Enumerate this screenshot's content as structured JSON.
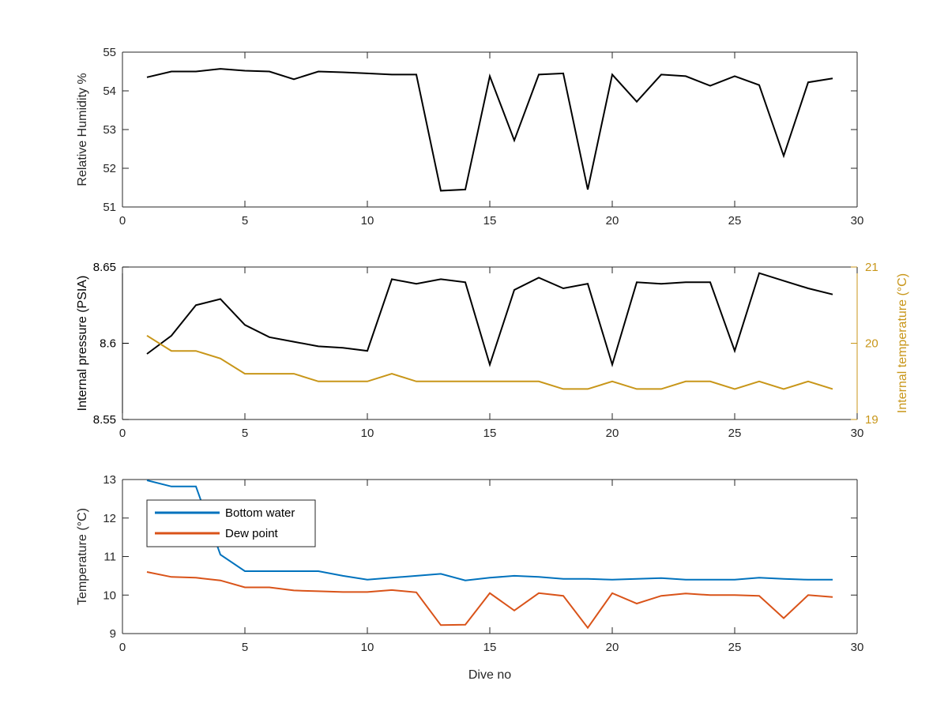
{
  "chart_data": [
    {
      "type": "line",
      "panel": "humidity",
      "title": "",
      "xlabel": "",
      "ylabel": "Relative Humidity %",
      "xlim": [
        0,
        30
      ],
      "ylim": [
        51,
        55
      ],
      "xticks": [
        0,
        5,
        10,
        15,
        20,
        25,
        30
      ],
      "yticks": [
        51,
        52,
        53,
        54,
        55
      ],
      "grid": false,
      "series": [
        {
          "color": "#000000",
          "x": [
            1,
            2,
            3,
            4,
            5,
            6,
            7,
            8,
            9,
            10,
            11,
            12,
            13,
            14,
            15,
            16,
            17,
            18,
            19,
            20,
            21,
            22,
            23,
            24,
            25,
            26,
            27,
            28,
            29
          ],
          "y": [
            54.35,
            54.5,
            54.5,
            54.57,
            54.52,
            54.5,
            54.3,
            54.5,
            54.48,
            54.45,
            54.42,
            54.42,
            51.42,
            51.45,
            54.38,
            52.72,
            54.42,
            54.45,
            51.45,
            54.42,
            53.72,
            54.42,
            54.38,
            54.13,
            54.38,
            54.15,
            52.32,
            54.22,
            54.32
          ]
        }
      ]
    },
    {
      "type": "line",
      "panel": "pressure",
      "title": "",
      "xlabel": "",
      "ylabel": "Internal pressure (PSIA)",
      "y2label": "Internal temperature (°C)",
      "xlim": [
        0,
        30
      ],
      "ylim": [
        8.55,
        8.65
      ],
      "y2lim": [
        19,
        21
      ],
      "xticks": [
        0,
        5,
        10,
        15,
        20,
        25,
        30
      ],
      "yticks": [
        "8.55",
        "8.6",
        "8.65"
      ],
      "y2ticks": [
        19,
        20,
        21
      ],
      "axis_colors": {
        "left": "#000000",
        "right": "#c89619"
      },
      "grid": false,
      "series": [
        {
          "axis": "left",
          "color": "#000000",
          "x": [
            1,
            2,
            3,
            4,
            5,
            6,
            7,
            8,
            9,
            10,
            11,
            12,
            13,
            14,
            15,
            16,
            17,
            18,
            19,
            20,
            21,
            22,
            23,
            24,
            25,
            26,
            27,
            28,
            29
          ],
          "y": [
            8.593,
            8.605,
            8.625,
            8.629,
            8.612,
            8.604,
            8.601,
            8.598,
            8.597,
            8.595,
            8.642,
            8.639,
            8.642,
            8.64,
            8.586,
            8.635,
            8.643,
            8.636,
            8.639,
            8.586,
            8.64,
            8.639,
            8.64,
            8.64,
            8.595,
            8.646,
            8.641,
            8.636,
            8.632
          ]
        },
        {
          "axis": "right",
          "color": "#c89619",
          "x": [
            1,
            2,
            3,
            4,
            5,
            6,
            7,
            8,
            9,
            10,
            11,
            12,
            13,
            14,
            15,
            16,
            17,
            18,
            19,
            20,
            21,
            22,
            23,
            24,
            25,
            26,
            27,
            28,
            29
          ],
          "y": [
            20.1,
            19.9,
            19.9,
            19.8,
            19.6,
            19.6,
            19.6,
            19.5,
            19.5,
            19.5,
            19.6,
            19.5,
            19.5,
            19.5,
            19.5,
            19.5,
            19.5,
            19.4,
            19.4,
            19.5,
            19.4,
            19.4,
            19.5,
            19.5,
            19.4,
            19.5,
            19.4,
            19.5,
            19.4
          ]
        }
      ]
    },
    {
      "type": "line",
      "panel": "temperature",
      "title": "",
      "xlabel": "Dive no",
      "ylabel": "Temperature (°C)",
      "xlim": [
        0,
        30
      ],
      "ylim": [
        9,
        13
      ],
      "xticks": [
        0,
        5,
        10,
        15,
        20,
        25,
        30
      ],
      "yticks": [
        9,
        10,
        11,
        12,
        13
      ],
      "grid": false,
      "legend_location": "top-left",
      "series": [
        {
          "name": "Bottom water",
          "color": "#0072bd",
          "x": [
            1,
            2,
            3,
            4,
            5,
            6,
            7,
            8,
            9,
            10,
            11,
            12,
            13,
            14,
            15,
            16,
            17,
            18,
            19,
            20,
            21,
            22,
            23,
            24,
            25,
            26,
            27,
            28,
            29
          ],
          "y": [
            12.98,
            12.82,
            12.82,
            11.05,
            10.62,
            10.62,
            10.62,
            10.62,
            10.5,
            10.4,
            10.45,
            10.5,
            10.55,
            10.38,
            10.45,
            10.5,
            10.47,
            10.42,
            10.42,
            10.4,
            10.42,
            10.44,
            10.4,
            10.4,
            10.4,
            10.45,
            10.42,
            10.4,
            10.4
          ]
        },
        {
          "name": "Dew point",
          "color": "#d95319",
          "x": [
            1,
            2,
            3,
            4,
            5,
            6,
            7,
            8,
            9,
            10,
            11,
            12,
            13,
            14,
            15,
            16,
            17,
            18,
            19,
            20,
            21,
            22,
            23,
            24,
            25,
            26,
            27,
            28,
            29
          ],
          "y": [
            10.6,
            10.47,
            10.45,
            10.38,
            10.2,
            10.2,
            10.12,
            10.1,
            10.08,
            10.08,
            10.13,
            10.07,
            9.22,
            9.23,
            10.05,
            9.6,
            10.05,
            9.98,
            9.15,
            10.05,
            9.78,
            9.98,
            10.04,
            10.0,
            10.0,
            9.98,
            9.4,
            10.0,
            9.95
          ]
        }
      ]
    }
  ]
}
